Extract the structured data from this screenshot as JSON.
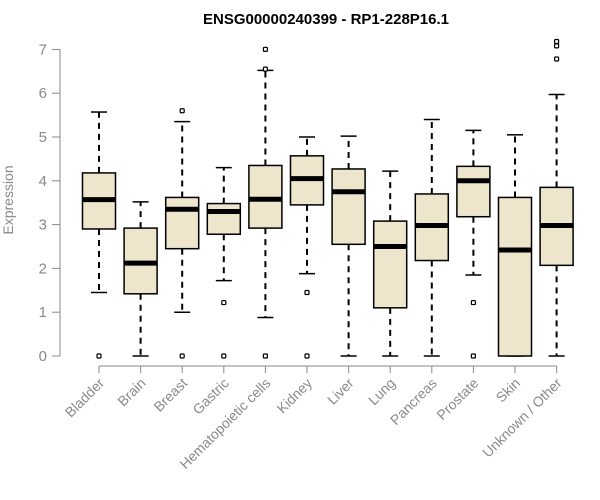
{
  "chart_data": {
    "type": "boxplot",
    "title": "ENSG00000240399 - RP1-228P16.1",
    "ylabel": "Expression",
    "xlabel": "",
    "ylim": [
      0,
      7.2
    ],
    "yticks": [
      0,
      1,
      2,
      3,
      4,
      5,
      6,
      7
    ],
    "grid": false,
    "box_fill": "#ede6cc",
    "box_stroke": "#000000",
    "categories": [
      "Bladder",
      "Brain",
      "Breast",
      "Gastric",
      "Hematopoietic cells",
      "Kidney",
      "Liver",
      "Lung",
      "Pancreas",
      "Prostate",
      "Skin",
      "Unknown / Other"
    ],
    "boxes": [
      {
        "whisker_low": 1.45,
        "q1": 2.9,
        "median": 3.57,
        "q3": 4.18,
        "whisker_high": 5.57,
        "outliers": [
          0
        ]
      },
      {
        "whisker_low": 0,
        "q1": 1.42,
        "median": 2.12,
        "q3": 2.92,
        "whisker_high": 3.52,
        "outliers": []
      },
      {
        "whisker_low": 1.0,
        "q1": 2.45,
        "median": 3.35,
        "q3": 3.62,
        "whisker_high": 5.35,
        "outliers": [
          5.6,
          0
        ]
      },
      {
        "whisker_low": 1.72,
        "q1": 2.78,
        "median": 3.3,
        "q3": 3.48,
        "whisker_high": 4.3,
        "outliers": [
          1.22,
          0
        ]
      },
      {
        "whisker_low": 0.88,
        "q1": 2.92,
        "median": 3.58,
        "q3": 4.35,
        "whisker_high": 6.52,
        "outliers": [
          7.0,
          6.55,
          0
        ]
      },
      {
        "whisker_low": 1.88,
        "q1": 3.45,
        "median": 4.05,
        "q3": 4.57,
        "whisker_high": 5.0,
        "outliers": [
          1.45,
          0
        ]
      },
      {
        "whisker_low": 0,
        "q1": 2.55,
        "median": 3.75,
        "q3": 4.27,
        "whisker_high": 5.02,
        "outliers": []
      },
      {
        "whisker_low": 0,
        "q1": 1.1,
        "median": 2.5,
        "q3": 3.08,
        "whisker_high": 4.22,
        "outliers": []
      },
      {
        "whisker_low": 0,
        "q1": 2.18,
        "median": 2.98,
        "q3": 3.7,
        "whisker_high": 5.4,
        "outliers": []
      },
      {
        "whisker_low": 1.85,
        "q1": 3.18,
        "median": 4.0,
        "q3": 4.33,
        "whisker_high": 5.15,
        "outliers": [
          1.22,
          0
        ]
      },
      {
        "whisker_low": 0,
        "q1": 0,
        "median": 2.42,
        "q3": 3.62,
        "whisker_high": 5.05,
        "outliers": []
      },
      {
        "whisker_low": 0,
        "q1": 2.07,
        "median": 2.98,
        "q3": 3.85,
        "whisker_high": 5.97,
        "outliers": [
          7.18,
          7.08,
          6.78
        ]
      }
    ]
  }
}
